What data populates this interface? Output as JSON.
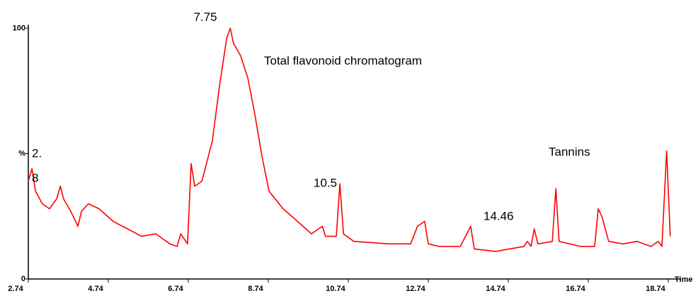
{
  "chart_data": {
    "type": "line",
    "x": [
      2.74,
      2.83,
      2.92,
      3.09,
      3.27,
      3.45,
      3.54,
      3.62,
      3.8,
      3.98,
      4.07,
      4.24,
      4.51,
      4.86,
      5.22,
      5.57,
      5.93,
      6.28,
      6.46,
      6.55,
      6.72,
      6.81,
      6.9,
      7.08,
      7.34,
      7.52,
      7.7,
      7.79,
      7.87,
      8.05,
      8.23,
      8.4,
      8.58,
      8.76,
      9.11,
      9.47,
      9.82,
      10.09,
      10.17,
      10.44,
      10.53,
      10.62,
      10.88,
      11.77,
      12.3,
      12.47,
      12.65,
      12.74,
      13.01,
      13.54,
      13.8,
      13.89,
      14.42,
      15.13,
      15.22,
      15.31,
      15.39,
      15.48,
      15.84,
      15.93,
      16.01,
      16.55,
      16.9,
      16.99,
      17.08,
      17.25,
      17.61,
      17.96,
      18.31,
      18.49,
      18.58,
      18.7,
      18.79
    ],
    "values": [
      39,
      44,
      35,
      30,
      28,
      32,
      37,
      32,
      27,
      21,
      27,
      30,
      28,
      23,
      20,
      17,
      18,
      14,
      13,
      18,
      14,
      46,
      37,
      39,
      55,
      77,
      96,
      100,
      94,
      89,
      80,
      66,
      49,
      35,
      28,
      23,
      18,
      21,
      17,
      17,
      38,
      18,
      15,
      14,
      14,
      21,
      23,
      14,
      13,
      13,
      21,
      12,
      11,
      13,
      15,
      13,
      20,
      14,
      15,
      36,
      15,
      13,
      13,
      28,
      25,
      15,
      14,
      15,
      13,
      15,
      13,
      51,
      17
    ],
    "color": "#ff0000",
    "xlim": [
      2.74,
      18.74
    ],
    "xticks": [
      2.74,
      4.74,
      6.74,
      8.74,
      10.74,
      12.74,
      14.74,
      16.74,
      18.74
    ],
    "ylim": [
      0,
      100
    ],
    "yticks": [
      0,
      {
        "value": 50,
        "label": "%"
      },
      100
    ],
    "x_label": "Time",
    "annotations": [
      "7.75",
      "Total flavonoid chromatogram",
      "2.",
      "8",
      "10.5",
      "14.46",
      "Tannins"
    ]
  }
}
